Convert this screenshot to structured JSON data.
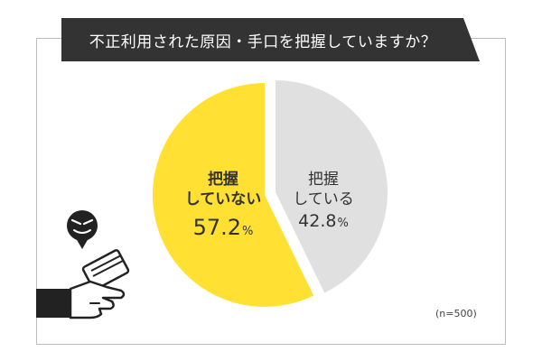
{
  "title": "不正利用された原因・手口を把握していますか？",
  "note": "(n=500)",
  "colors": {
    "yes": "#ffe033",
    "no": "#e0e0e0",
    "banner": "#333333",
    "frame": "#bdbdbd"
  },
  "icons": {
    "face": "sneaky-face-icon",
    "hand": "hand-holding-card-icon"
  },
  "chart_data": {
    "type": "pie",
    "title": "不正利用された原因・手口を把握していますか？",
    "slices": [
      {
        "line1": "把握",
        "line2": "していない",
        "value": 57.2,
        "unit": "%",
        "color": "#ffe033"
      },
      {
        "line1": "把握",
        "line2": "している",
        "value": 42.8,
        "unit": "%",
        "color": "#e0e0e0"
      }
    ],
    "sample_note": "(n=500)"
  }
}
